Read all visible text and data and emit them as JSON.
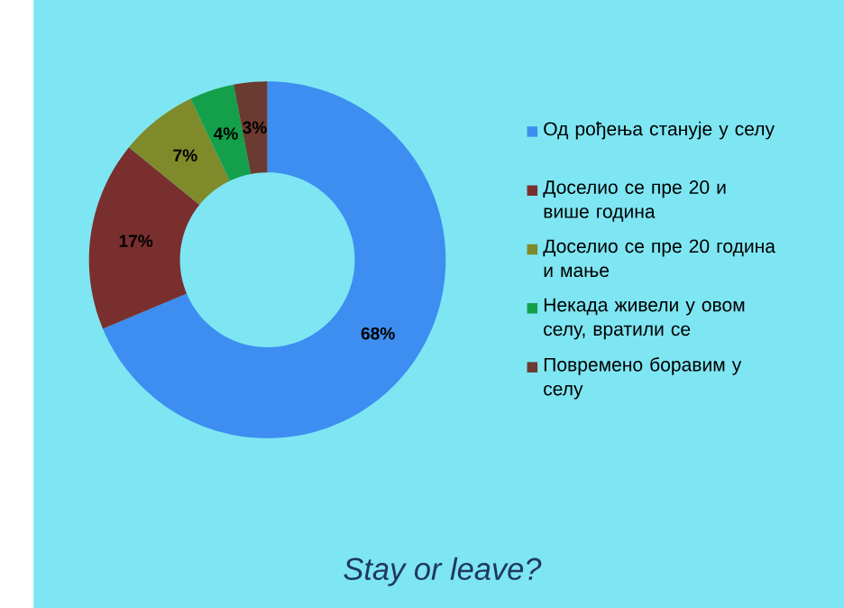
{
  "chart_data": {
    "type": "donut",
    "title": "Stay or leave?",
    "categories": [
      "Од рођења станује у селу",
      "Доселио се пре 20 и више година",
      "Доселио се пре 20 година и мање",
      "Некада живели у овом селу, вратили се",
      "Повремено боравим у селу"
    ],
    "values": [
      68,
      17,
      7,
      4,
      3
    ],
    "value_labels": [
      "68%",
      "17%",
      "7%",
      "4%",
      "3%"
    ],
    "colors": [
      "#3d8ef0",
      "#7a2f2f",
      "#7f8a2a",
      "#14a04a",
      "#6b3a30"
    ],
    "legend": "right"
  }
}
